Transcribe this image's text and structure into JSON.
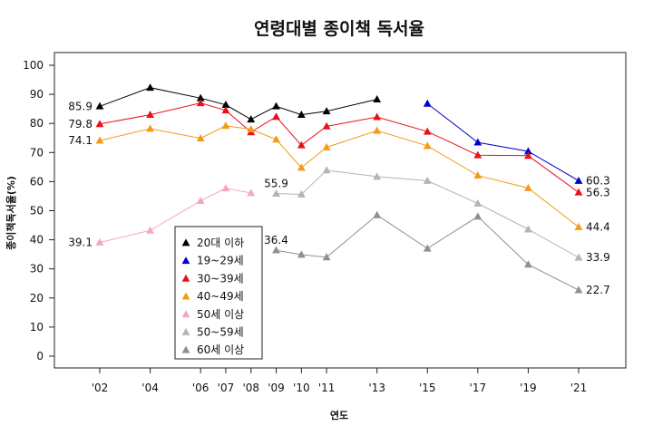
{
  "chart_data": {
    "type": "line",
    "title": "연령대별 종이책 독서율",
    "xlabel": "연도",
    "ylabel": "종이책독서율(%)",
    "ylim": [
      0,
      100
    ],
    "yticks": [
      0,
      10,
      20,
      30,
      40,
      50,
      60,
      70,
      80,
      90,
      100
    ],
    "x": [
      "'02",
      "'04",
      "'06",
      "'07",
      "'08",
      "'09",
      "'10",
      "'11",
      "'13",
      "'15",
      "'17",
      "'19",
      "'21"
    ],
    "x_values": [
      2002,
      2004,
      2006,
      2007,
      2008,
      2009,
      2010,
      2011,
      2013,
      2015,
      2017,
      2019,
      2021
    ],
    "x_tick_labels": [
      "'02",
      "'04",
      "'06",
      "'07",
      "'08",
      "'09",
      "'10",
      "'11",
      "'13",
      "'15",
      "'17",
      "'19",
      "'21"
    ],
    "grid": false,
    "legend_position": "inside-bottom-left",
    "series": [
      {
        "name": "20대 이하",
        "color": "#000000",
        "segments": [
          [
            [
              2002,
              85.9
            ],
            [
              2004,
              92.3
            ],
            [
              2006,
              88.7
            ],
            [
              2007,
              86.4
            ],
            [
              2008,
              81.4
            ],
            [
              2009,
              85.9
            ],
            [
              2010,
              83.0
            ],
            [
              2011,
              84.2
            ],
            [
              2013,
              88.3
            ]
          ]
        ]
      },
      {
        "name": "19~29세",
        "color": "#0000cc",
        "segments": [
          [
            [
              2015,
              86.8
            ],
            [
              2017,
              73.5
            ],
            [
              2019,
              70.4
            ],
            [
              2021,
              60.3
            ]
          ]
        ]
      },
      {
        "name": "30~39세",
        "color": "#e8101a",
        "segments": [
          [
            [
              2002,
              79.8
            ],
            [
              2004,
              83.0
            ],
            [
              2006,
              87.0
            ],
            [
              2007,
              84.5
            ],
            [
              2008,
              77.0
            ],
            [
              2009,
              82.3
            ],
            [
              2010,
              72.5
            ],
            [
              2011,
              79.0
            ],
            [
              2013,
              82.2
            ],
            [
              2015,
              77.2
            ],
            [
              2017,
              69.1
            ],
            [
              2019,
              68.9
            ],
            [
              2021,
              56.3
            ]
          ]
        ]
      },
      {
        "name": "40~49세",
        "color": "#f59a16",
        "segments": [
          [
            [
              2002,
              74.1
            ],
            [
              2004,
              78.2
            ],
            [
              2006,
              74.9
            ],
            [
              2007,
              79.2
            ],
            [
              2008,
              78.0
            ],
            [
              2009,
              74.5
            ],
            [
              2010,
              64.8
            ],
            [
              2011,
              71.8
            ],
            [
              2013,
              77.5
            ],
            [
              2015,
              72.3
            ],
            [
              2017,
              62.1
            ],
            [
              2019,
              57.8
            ],
            [
              2021,
              44.4
            ]
          ]
        ]
      },
      {
        "name": "50세 이상",
        "color": "#f4a7b9",
        "segments": [
          [
            [
              2002,
              39.1
            ],
            [
              2004,
              43.2
            ],
            [
              2006,
              53.4
            ],
            [
              2007,
              57.7
            ],
            [
              2008,
              56.1
            ]
          ]
        ]
      },
      {
        "name": "50~59세",
        "color": "#b4b4b4",
        "segments": [
          [
            [
              2009,
              55.9
            ],
            [
              2010,
              55.6
            ],
            [
              2011,
              63.9
            ],
            [
              2013,
              61.7
            ],
            [
              2015,
              60.3
            ],
            [
              2017,
              52.5
            ],
            [
              2019,
              43.6
            ],
            [
              2021,
              33.9
            ]
          ]
        ]
      },
      {
        "name": "60세 이상",
        "color": "#8f8f8f",
        "segments": [
          [
            [
              2009,
              36.4
            ],
            [
              2010,
              34.9
            ],
            [
              2011,
              34.0
            ],
            [
              2013,
              48.5
            ],
            [
              2015,
              37.0
            ],
            [
              2017,
              48.0
            ],
            [
              2019,
              31.5
            ],
            [
              2021,
              22.7
            ]
          ]
        ]
      }
    ],
    "annotations": [
      {
        "text": "85.9",
        "x": 2002,
        "y": 85.9,
        "side": "left"
      },
      {
        "text": "79.8",
        "x": 2002,
        "y": 79.8,
        "side": "left"
      },
      {
        "text": "74.1",
        "x": 2002,
        "y": 74.1,
        "side": "left"
      },
      {
        "text": "39.1",
        "x": 2002,
        "y": 39.1,
        "side": "left"
      },
      {
        "text": "55.9",
        "x": 2009,
        "y": 55.9,
        "side": "above"
      },
      {
        "text": "36.4",
        "x": 2009,
        "y": 36.4,
        "side": "above"
      },
      {
        "text": "60.3",
        "x": 2021,
        "y": 60.3,
        "side": "right"
      },
      {
        "text": "56.3",
        "x": 2021,
        "y": 56.3,
        "side": "right"
      },
      {
        "text": "44.4",
        "x": 2021,
        "y": 44.4,
        "side": "right"
      },
      {
        "text": "33.9",
        "x": 2021,
        "y": 33.9,
        "side": "right"
      },
      {
        "text": "22.7",
        "x": 2021,
        "y": 22.7,
        "side": "right"
      }
    ]
  }
}
